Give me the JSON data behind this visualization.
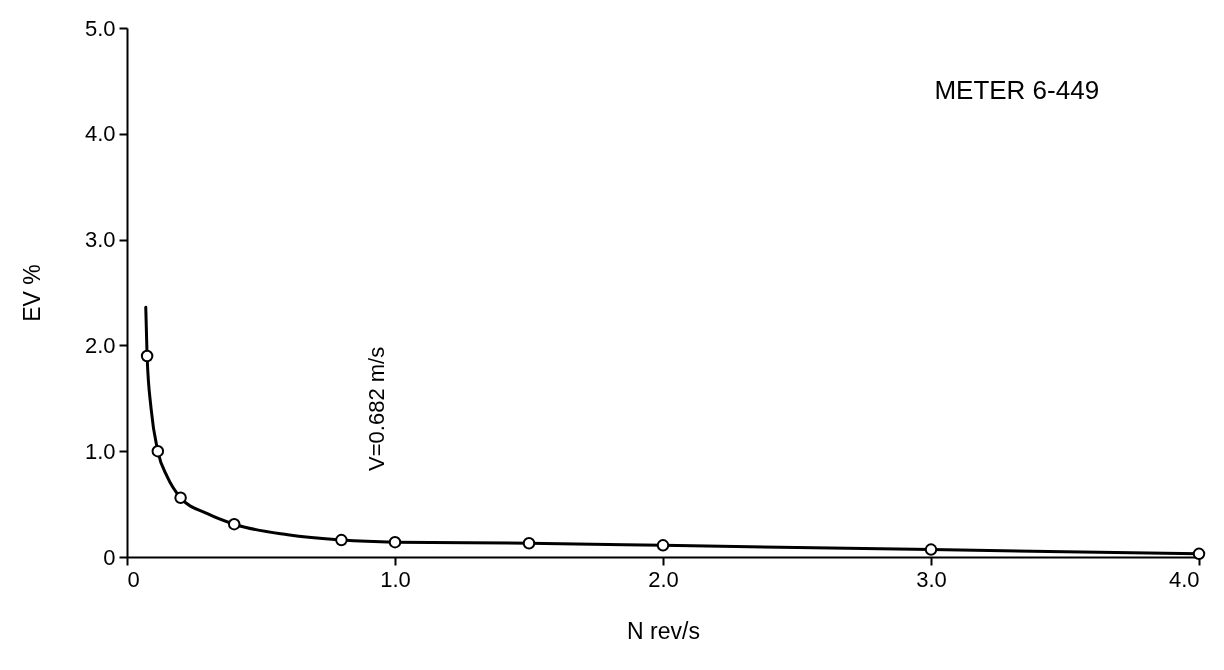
{
  "chart_data": {
    "type": "scatter",
    "xlabel": "N  rev/s",
    "ylabel": "EV %",
    "xlim": [
      0,
      4.0
    ],
    "xticks": [
      0,
      {
        "value": 1,
        "label": "1.0"
      },
      {
        "value": 2,
        "label": "2.0"
      },
      {
        "value": 3,
        "label": "3.0"
      },
      {
        "value": 4,
        "label": "4.0"
      }
    ],
    "ylim": [
      0,
      5.0
    ],
    "yticks": [
      0,
      {
        "value": 1,
        "label": "1.0"
      },
      {
        "value": 2,
        "label": "2.0"
      },
      {
        "value": 3,
        "label": "3.0"
      },
      {
        "value": 4,
        "label": "4.0"
      },
      {
        "value": 5,
        "label": "5.0"
      }
    ],
    "series": [
      {
        "type": "line",
        "marker": "none",
        "color": "#000000",
        "x": [
          0.07,
          0.075,
          0.09,
          0.115,
          0.15,
          0.2,
          0.3,
          0.4,
          0.6,
          0.8,
          1.0,
          1.5,
          2.0,
          3.0,
          4.0
        ],
        "values": [
          2.36,
          1.9,
          1.4,
          1.0,
          0.76,
          0.56,
          0.41,
          0.31,
          0.21,
          0.16,
          0.14,
          0.13,
          0.11,
          0.07,
          0.03
        ]
      },
      {
        "type": "scatter",
        "marker": "circle",
        "color": "#000000",
        "x": [
          0.075,
          0.115,
          0.2,
          0.4,
          0.8,
          1.0,
          1.5,
          2.0,
          3.0,
          4.0
        ],
        "values": [
          1.9,
          1.0,
          0.56,
          0.31,
          0.16,
          0.14,
          0.13,
          0.11,
          0.07,
          0.03
        ]
      }
    ],
    "annotations": [
      "METER 6-449",
      "V=0.682 m/s"
    ]
  }
}
